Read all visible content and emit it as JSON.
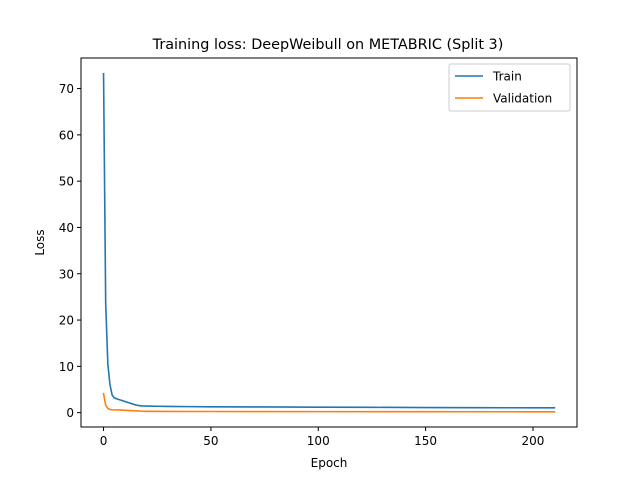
{
  "chart_data": {
    "type": "line",
    "title": "Training loss: DeepWeibull on METABRIC (Split 3)",
    "xlabel": "Epoch",
    "ylabel": "Loss",
    "xlim": [
      -10.5,
      220.5
    ],
    "ylim": [
      -3.1,
      76.6
    ],
    "xticks": [
      0,
      50,
      100,
      150,
      200
    ],
    "yticks": [
      0,
      10,
      20,
      30,
      40,
      50,
      60,
      70
    ],
    "grid": false,
    "legend_position": "top-right",
    "series": [
      {
        "name": "Train",
        "color": "#1f77b4",
        "x": [
          0,
          1,
          2,
          3,
          4,
          5,
          6,
          8,
          10,
          12,
          14,
          16,
          18,
          20,
          25,
          30,
          40,
          50,
          75,
          100,
          125,
          150,
          175,
          200,
          210
        ],
        "y": [
          73.2,
          23.5,
          10.5,
          6.0,
          3.8,
          3.2,
          3.0,
          2.7,
          2.4,
          2.1,
          1.8,
          1.55,
          1.45,
          1.42,
          1.38,
          1.34,
          1.3,
          1.27,
          1.23,
          1.19,
          1.15,
          1.1,
          1.07,
          1.05,
          1.04
        ]
      },
      {
        "name": "Validation",
        "color": "#ff7f0e",
        "x": [
          0,
          1,
          2,
          3,
          4,
          5,
          8,
          10,
          15,
          18,
          20,
          30,
          50,
          100,
          150,
          200,
          210
        ],
        "y": [
          4.1,
          1.6,
          0.9,
          0.7,
          0.62,
          0.6,
          0.55,
          0.5,
          0.4,
          0.3,
          0.28,
          0.27,
          0.25,
          0.22,
          0.2,
          0.19,
          0.19
        ]
      }
    ]
  }
}
